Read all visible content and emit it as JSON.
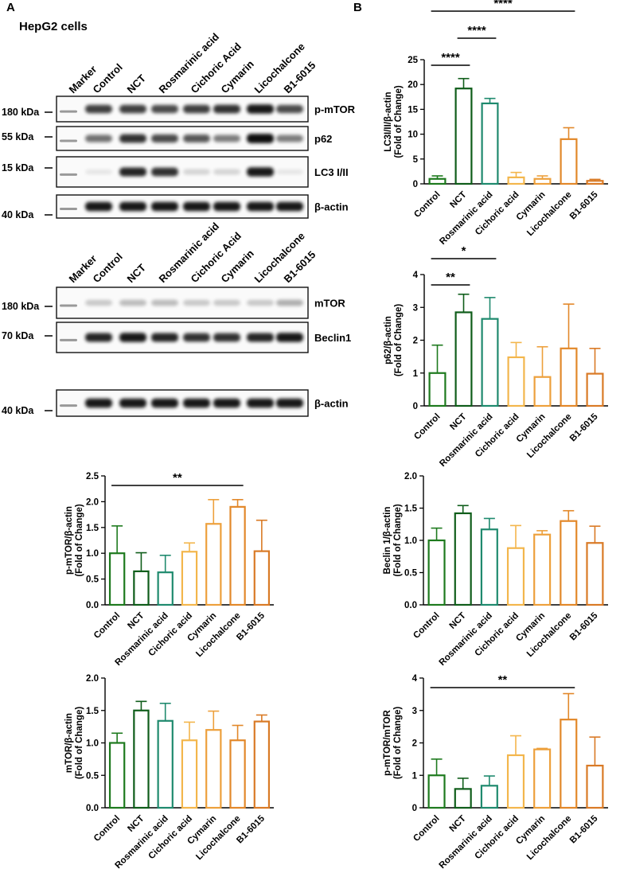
{
  "panel_a": {
    "label": "A",
    "cell_line": "HepG2 cells",
    "blot1": {
      "lanes": [
        "Marker",
        "Control",
        "NCT",
        "Rosmarinic acid",
        "Cichoric Acid",
        "Cymarin",
        "Licochalcone",
        "B1-6015"
      ],
      "strips": [
        {
          "marker": "180 kDa",
          "protein": "p-mTOR"
        },
        {
          "marker": "55 kDa",
          "protein": "p62"
        },
        {
          "marker": "15 kDa",
          "protein": "LC3 I/II"
        },
        {
          "marker": "40 kDa",
          "protein": "β-actin"
        }
      ],
      "intensity": [
        [
          0.75,
          0.75,
          0.7,
          0.75,
          0.8,
          0.9,
          0.7
        ],
        [
          0.55,
          0.8,
          0.7,
          0.65,
          0.5,
          0.95,
          0.5
        ],
        [
          0.05,
          0.85,
          0.8,
          0.15,
          0.15,
          0.9,
          0.05
        ],
        [
          0.9,
          0.9,
          0.9,
          0.9,
          0.9,
          0.9,
          0.9
        ]
      ]
    },
    "blot2": {
      "lanes": [
        "Marker",
        "Control",
        "NCT",
        "Rosmarinic acid",
        "Cichoric Acid",
        "Cymarin",
        "Licochalcone",
        "B1-6015"
      ],
      "strips": [
        {
          "marker": "180 kDa",
          "protein": "mTOR"
        },
        {
          "marker": "70 kDa",
          "protein": "Beclin1"
        },
        {
          "marker": "40 kDa",
          "protein": "β-actin"
        }
      ],
      "intensity": [
        [
          0.2,
          0.25,
          0.25,
          0.2,
          0.2,
          0.2,
          0.3
        ],
        [
          0.85,
          0.9,
          0.85,
          0.8,
          0.8,
          0.85,
          0.9
        ],
        [
          0.9,
          0.9,
          0.9,
          0.9,
          0.9,
          0.9,
          0.9
        ]
      ]
    }
  },
  "panel_b": {
    "label": "B"
  },
  "colors": {
    "Control": "#1e7a1e",
    "NCT": "#0f5d1a",
    "Rosmarinic acid": "#1f8a6e",
    "Cichoric acid": "#f3b64c",
    "Cymarin": "#eda03c",
    "Licochalcone": "#e2882a",
    "B1-6015": "#d97a26"
  },
  "chart_data": [
    {
      "id": "lc3",
      "type": "bar",
      "ylabel": [
        "LC3I/II/β-actin",
        "(Fold of Change)"
      ],
      "categories": [
        "Control",
        "NCT",
        "Rosmarinic acid",
        "Cichoric acid",
        "Cymarin",
        "Licochalcone",
        "B1-6015"
      ],
      "values": [
        1.0,
        19.2,
        16.2,
        1.3,
        1.0,
        9.0,
        0.6
      ],
      "errors": [
        0.6,
        2.0,
        1.0,
        1.0,
        0.6,
        2.3,
        0.3
      ],
      "ylim": [
        0,
        25
      ],
      "yticks": [
        0,
        5,
        10,
        15,
        20,
        25
      ],
      "significance": [
        {
          "from": 0,
          "to": 5,
          "label": "****"
        },
        {
          "from": 1,
          "to": 2,
          "label": "****"
        },
        {
          "from": 0,
          "to": 1,
          "label": "****"
        }
      ]
    },
    {
      "id": "p62",
      "type": "bar",
      "ylabel": [
        "p62/β-actin",
        "(Fold of Change)"
      ],
      "categories": [
        "Control",
        "NCT",
        "Rosmarinic acid",
        "Cichoric acid",
        "Cymarin",
        "Licochalcone",
        "B1-6015"
      ],
      "values": [
        1.0,
        2.85,
        2.65,
        1.48,
        0.88,
        1.75,
        0.98
      ],
      "errors": [
        0.85,
        0.55,
        0.65,
        0.45,
        0.92,
        1.35,
        0.77
      ],
      "ylim": [
        0,
        4
      ],
      "yticks": [
        0,
        1,
        2,
        3,
        4
      ],
      "significance": [
        {
          "from": 0,
          "to": 2,
          "label": "*"
        },
        {
          "from": 0,
          "to": 1,
          "label": "**"
        }
      ]
    },
    {
      "id": "pmtor",
      "type": "bar",
      "ylabel": [
        "p-mTOR/β-actin",
        "(Fold of Change)"
      ],
      "categories": [
        "Control",
        "NCT",
        "Rosmarinic acid",
        "Cichoric acid",
        "Cymarin",
        "Licochalcone",
        "B1-6015"
      ],
      "values": [
        1.0,
        0.65,
        0.63,
        1.03,
        1.57,
        1.9,
        1.04
      ],
      "errors": [
        0.53,
        0.36,
        0.33,
        0.17,
        0.47,
        0.14,
        0.6
      ],
      "ylim": [
        0,
        2.5
      ],
      "yticks": [
        0.0,
        0.5,
        1.0,
        1.5,
        2.0,
        2.5
      ],
      "significance": [
        {
          "from": 0,
          "to": 5,
          "label": "**"
        }
      ]
    },
    {
      "id": "beclin",
      "type": "bar",
      "ylabel": [
        "Beclin 1/β-actin",
        "(Fold of Change)"
      ],
      "categories": [
        "Control",
        "NCT",
        "Rosmarinic acid",
        "Cichoric acid",
        "Cymarin",
        "Licochalcone",
        "B1-6015"
      ],
      "values": [
        1.0,
        1.42,
        1.17,
        0.88,
        1.09,
        1.3,
        0.96
      ],
      "errors": [
        0.19,
        0.12,
        0.17,
        0.35,
        0.06,
        0.16,
        0.26
      ],
      "ylim": [
        0,
        2.0
      ],
      "yticks": [
        0.0,
        0.5,
        1.0,
        1.5,
        2.0
      ],
      "significance": []
    },
    {
      "id": "mtor",
      "type": "bar",
      "ylabel": [
        "mTOR/β-actin",
        "(Fold of Change)"
      ],
      "categories": [
        "Control",
        "NCT",
        "Rosmarinic acid",
        "Cichoric acid",
        "Cymarin",
        "Licochalcone",
        "B1-6015"
      ],
      "values": [
        1.0,
        1.5,
        1.34,
        1.04,
        1.2,
        1.04,
        1.33
      ],
      "errors": [
        0.15,
        0.14,
        0.27,
        0.28,
        0.29,
        0.23,
        0.1
      ],
      "ylim": [
        0,
        2.0
      ],
      "yticks": [
        0.0,
        0.5,
        1.0,
        1.5,
        2.0
      ],
      "significance": []
    },
    {
      "id": "ratio",
      "type": "bar",
      "ylabel": [
        "p-mTOR/mTOR",
        "(Fold of Change)"
      ],
      "categories": [
        "Control",
        "NCT",
        "Rosmarinic acid",
        "Cichoric acid",
        "Cymarin",
        "Licochalcone",
        "B1-6015"
      ],
      "values": [
        1.0,
        0.58,
        0.68,
        1.62,
        1.8,
        2.72,
        1.3
      ],
      "errors": [
        0.5,
        0.33,
        0.3,
        0.6,
        0.03,
        0.8,
        0.88
      ],
      "ylim": [
        0,
        4
      ],
      "yticks": [
        0,
        1,
        2,
        3,
        4
      ],
      "significance": [
        {
          "from": 0,
          "to": 5,
          "label": "**"
        }
      ]
    }
  ]
}
